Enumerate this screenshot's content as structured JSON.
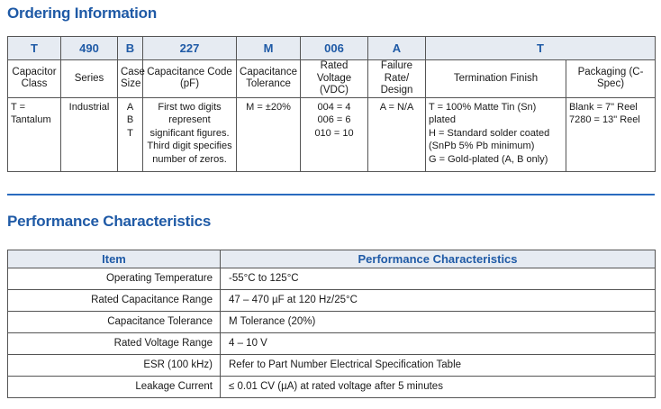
{
  "ordering": {
    "title": "Ordering Information",
    "codes": [
      "T",
      "490",
      "B",
      "227",
      "M",
      "006",
      "A",
      "T",
      ""
    ],
    "headers": [
      "Capacitor Class",
      "Series",
      "Case Size",
      "Capacitance Code (pF)",
      "Capacitance Tolerance",
      "Rated Voltage (VDC)",
      "Failure Rate/ Design",
      "Termination Finish",
      "Packaging (C-Spec)"
    ],
    "cells": [
      [
        "T =",
        "Tantalum"
      ],
      [
        "Industrial"
      ],
      [
        "A",
        "B",
        "T"
      ],
      [
        "First two digits",
        "represent",
        "significant figures.",
        "Third digit specifies",
        "number of zeros."
      ],
      [
        "M = ±20%"
      ],
      [
        "004 = 4",
        "006 = 6",
        "010 = 10"
      ],
      [
        "A = N/A"
      ],
      [
        "T = 100% Matte Tin (Sn) plated",
        "H = Standard solder coated",
        "(SnPb 5% Pb minimum)",
        "G = Gold-plated (A, B only)"
      ],
      [
        "Blank = 7\" Reel",
        "7280 = 13\" Reel"
      ]
    ]
  },
  "performance": {
    "title": "Performance Characteristics",
    "col_item": "Item",
    "col_perf": "Performance Characteristics",
    "rows": [
      {
        "item": "Operating Temperature",
        "value": "-55°C to 125°C"
      },
      {
        "item": "Rated Capacitance Range",
        "value": "47 – 470 µF at 120 Hz/25°C"
      },
      {
        "item": "Capacitance Tolerance",
        "value": "M Tolerance (20%)"
      },
      {
        "item": "Rated Voltage Range",
        "value": "4 – 10 V"
      },
      {
        "item": "ESR (100 kHz)",
        "value": "Refer to Part Number Electrical Specification Table"
      },
      {
        "item": "Leakage Current",
        "value": "≤ 0.01 CV (µA) at rated voltage after 5 minutes"
      }
    ]
  },
  "colors": {
    "heading": "#1f5aa6",
    "header_fill": "#e6ebf2",
    "rule": "#2a6bbf"
  }
}
